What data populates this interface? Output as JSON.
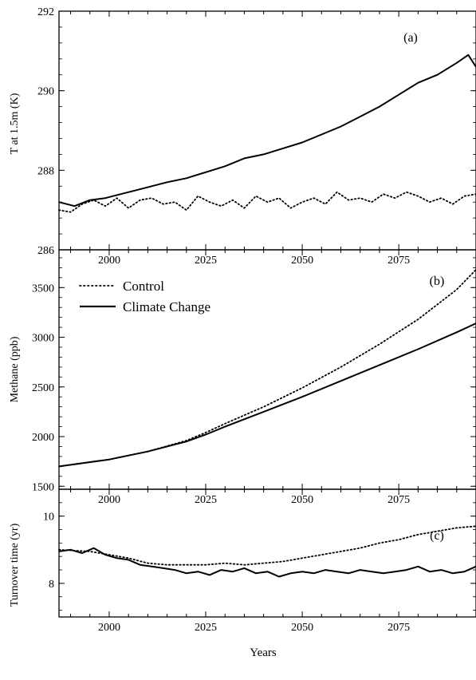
{
  "figure": {
    "xlabel": "Years"
  },
  "chart_data": [
    {
      "type": "line",
      "panel_label": "(a)",
      "ylabel": "T at 1.5m (K)",
      "ylim": [
        286,
        292
      ],
      "yticks": [
        286,
        288,
        290,
        292
      ],
      "xlim": [
        1987,
        2095
      ],
      "xticks": [
        2000,
        2025,
        2050,
        2075
      ],
      "series": [
        {
          "key": "climate",
          "style": "solid",
          "x": [
            1987,
            1991,
            1995,
            1999,
            2003,
            2007,
            2011,
            2015,
            2020,
            2025,
            2030,
            2035,
            2040,
            2045,
            2050,
            2055,
            2060,
            2065,
            2070,
            2075,
            2080,
            2085,
            2090,
            2093,
            2095
          ],
          "values": [
            287.2,
            287.1,
            287.25,
            287.3,
            287.4,
            287.5,
            287.6,
            287.7,
            287.8,
            287.95,
            288.1,
            288.3,
            288.4,
            288.55,
            288.7,
            288.9,
            289.1,
            289.35,
            289.6,
            289.9,
            290.2,
            290.4,
            290.7,
            290.9,
            290.6
          ]
        },
        {
          "key": "control",
          "style": "dotted",
          "x": [
            1987,
            1990,
            1993,
            1996,
            1999,
            2002,
            2005,
            2008,
            2011,
            2014,
            2017,
            2020,
            2023,
            2026,
            2029,
            2032,
            2035,
            2038,
            2041,
            2044,
            2047,
            2050,
            2053,
            2056,
            2059,
            2062,
            2065,
            2068,
            2071,
            2074,
            2077,
            2080,
            2083,
            2086,
            2089,
            2092,
            2095
          ],
          "values": [
            287.0,
            286.95,
            287.15,
            287.25,
            287.1,
            287.3,
            287.05,
            287.25,
            287.3,
            287.15,
            287.2,
            287.0,
            287.35,
            287.2,
            287.1,
            287.25,
            287.05,
            287.35,
            287.2,
            287.3,
            287.05,
            287.2,
            287.3,
            287.15,
            287.45,
            287.25,
            287.3,
            287.2,
            287.4,
            287.3,
            287.45,
            287.35,
            287.2,
            287.3,
            287.15,
            287.35,
            287.4
          ]
        }
      ]
    },
    {
      "type": "line",
      "panel_label": "(b)",
      "ylabel": "Methane (ppb)",
      "ylim": [
        1470,
        3880
      ],
      "yticks": [
        1500,
        2000,
        2500,
        3000,
        3500
      ],
      "xlim": [
        1987,
        2095
      ],
      "xticks": [
        2000,
        2025,
        2050,
        2075
      ],
      "legend": {
        "position": "top-left",
        "entries": [
          "Control",
          "Climate Change"
        ]
      },
      "series": [
        {
          "key": "control",
          "name": "Control",
          "style": "dotted",
          "x": [
            1987,
            2000,
            2010,
            2020,
            2025,
            2030,
            2040,
            2050,
            2060,
            2070,
            2080,
            2090,
            2095
          ],
          "values": [
            1700,
            1770,
            1850,
            1960,
            2040,
            2130,
            2300,
            2490,
            2700,
            2930,
            3180,
            3480,
            3680
          ]
        },
        {
          "key": "climate",
          "name": "Climate Change",
          "style": "solid",
          "x": [
            1987,
            2000,
            2010,
            2020,
            2025,
            2030,
            2040,
            2050,
            2060,
            2070,
            2080,
            2090,
            2095
          ],
          "values": [
            1700,
            1770,
            1850,
            1950,
            2020,
            2100,
            2250,
            2400,
            2560,
            2720,
            2880,
            3050,
            3140
          ]
        }
      ]
    },
    {
      "type": "line",
      "panel_label": "(c)",
      "ylabel": "Turnover time (yr)",
      "ylim": [
        7,
        10.8
      ],
      "yticks": [
        8,
        10
      ],
      "xlim": [
        1987,
        2095
      ],
      "xticks": [
        2000,
        2025,
        2050,
        2075
      ],
      "series": [
        {
          "key": "control",
          "style": "dotted",
          "x": [
            1987,
            1995,
            2000,
            2005,
            2010,
            2015,
            2020,
            2025,
            2030,
            2035,
            2040,
            2045,
            2050,
            2055,
            2060,
            2065,
            2070,
            2075,
            2080,
            2085,
            2090,
            2095
          ],
          "values": [
            9.0,
            8.95,
            8.85,
            8.75,
            8.6,
            8.55,
            8.55,
            8.55,
            8.6,
            8.55,
            8.6,
            8.65,
            8.75,
            8.85,
            8.95,
            9.05,
            9.2,
            9.3,
            9.45,
            9.55,
            9.65,
            9.7
          ]
        },
        {
          "key": "climate",
          "style": "solid",
          "x": [
            1987,
            1990,
            1993,
            1996,
            1999,
            2002,
            2005,
            2008,
            2011,
            2014,
            2017,
            2020,
            2023,
            2026,
            2029,
            2032,
            2035,
            2038,
            2041,
            2044,
            2047,
            2050,
            2053,
            2056,
            2059,
            2062,
            2065,
            2068,
            2071,
            2074,
            2077,
            2080,
            2083,
            2086,
            2089,
            2092,
            2095
          ],
          "values": [
            8.95,
            9.0,
            8.9,
            9.05,
            8.85,
            8.75,
            8.7,
            8.55,
            8.5,
            8.45,
            8.4,
            8.3,
            8.35,
            8.25,
            8.4,
            8.35,
            8.45,
            8.3,
            8.35,
            8.2,
            8.3,
            8.35,
            8.3,
            8.4,
            8.35,
            8.3,
            8.4,
            8.35,
            8.3,
            8.35,
            8.4,
            8.5,
            8.35,
            8.4,
            8.3,
            8.35,
            8.5
          ]
        }
      ]
    }
  ]
}
